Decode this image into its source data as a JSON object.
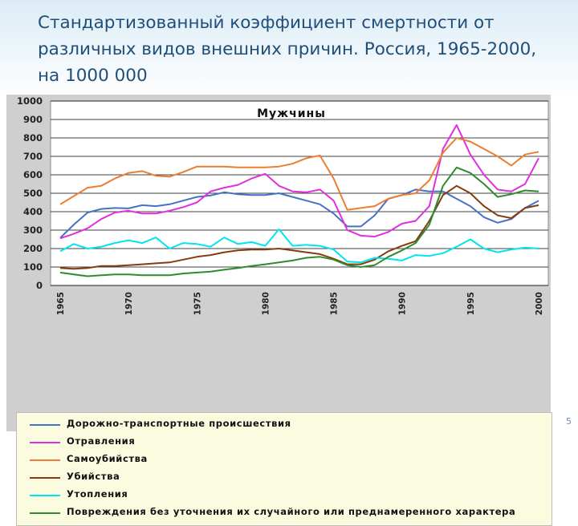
{
  "slide": {
    "title": "Стандартизованный коэффициент смертности от различных видов внешних причин. Россия, 1965-2000, на 1000 000",
    "page_number": "5"
  },
  "colors": {
    "plot_bg": "#ffffff",
    "frame_bg": "#cfcfcf",
    "gridline": "#000000",
    "title_text": "#1f4e79",
    "legend_bg": "#fbfbe0"
  },
  "chart_data": {
    "type": "line",
    "title": "Мужчины",
    "xlabel": "",
    "ylabel": "",
    "x": [
      1965,
      1966,
      1967,
      1968,
      1969,
      1970,
      1971,
      1972,
      1973,
      1974,
      1975,
      1976,
      1977,
      1978,
      1979,
      1980,
      1981,
      1982,
      1983,
      1984,
      1985,
      1986,
      1987,
      1988,
      1989,
      1990,
      1991,
      1992,
      1993,
      1994,
      1995,
      1996,
      1997,
      1998,
      1999,
      2000
    ],
    "x_ticks": [
      1965,
      1970,
      1975,
      1980,
      1985,
      1990,
      1995,
      2000
    ],
    "ylim": [
      0,
      1000
    ],
    "y_ticks": [
      0,
      100,
      200,
      300,
      400,
      500,
      600,
      700,
      800,
      900,
      1000
    ],
    "grid": "horizontal",
    "legend_position": "bottom",
    "series": [
      {
        "name": "Дорожно-транспортные происшествия",
        "color": "#4472c4",
        "values": [
          258,
          330,
          395,
          415,
          420,
          418,
          435,
          430,
          440,
          460,
          480,
          488,
          505,
          495,
          490,
          490,
          500,
          480,
          460,
          440,
          390,
          320,
          320,
          380,
          470,
          490,
          520,
          510,
          510,
          470,
          430,
          370,
          340,
          360,
          420,
          460
        ]
      },
      {
        "name": "Отравления",
        "color": "#e02ee0",
        "values": [
          255,
          280,
          310,
          360,
          395,
          405,
          390,
          390,
          405,
          425,
          450,
          510,
          530,
          545,
          580,
          605,
          540,
          510,
          505,
          520,
          460,
          300,
          270,
          265,
          290,
          335,
          350,
          430,
          740,
          870,
          710,
          600,
          520,
          510,
          550,
          690
        ]
      },
      {
        "name": "Самоубийства",
        "color": "#ed7d31",
        "values": [
          440,
          485,
          530,
          540,
          580,
          610,
          620,
          595,
          590,
          615,
          645,
          645,
          645,
          640,
          640,
          640,
          645,
          660,
          690,
          705,
          580,
          410,
          420,
          430,
          470,
          490,
          500,
          570,
          720,
          800,
          780,
          740,
          700,
          650,
          710,
          725
        ]
      },
      {
        "name": "Убийства",
        "color": "#843c0c",
        "values": [
          95,
          90,
          95,
          105,
          105,
          110,
          115,
          120,
          125,
          140,
          155,
          165,
          180,
          190,
          195,
          195,
          200,
          190,
          180,
          170,
          145,
          115,
          115,
          140,
          185,
          215,
          240,
          350,
          490,
          540,
          500,
          430,
          380,
          365,
          420,
          435
        ]
      },
      {
        "name": "Утопления",
        "color": "#00e5ee",
        "values": [
          185,
          225,
          200,
          210,
          230,
          245,
          230,
          260,
          200,
          230,
          225,
          210,
          260,
          225,
          235,
          215,
          305,
          215,
          220,
          215,
          195,
          130,
          125,
          150,
          145,
          135,
          165,
          160,
          175,
          210,
          250,
          200,
          180,
          195,
          205,
          200
        ]
      },
      {
        "name": "Повреждения без уточнения их случайного или преднамеренного характера",
        "color": "#2e8b2e",
        "values": [
          70,
          60,
          50,
          55,
          60,
          60,
          55,
          55,
          55,
          65,
          70,
          75,
          85,
          95,
          105,
          115,
          125,
          135,
          150,
          155,
          140,
          110,
          100,
          110,
          155,
          190,
          230,
          330,
          540,
          640,
          610,
          550,
          480,
          495,
          515,
          510
        ]
      }
    ]
  }
}
